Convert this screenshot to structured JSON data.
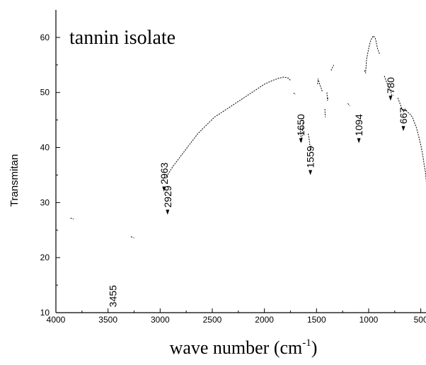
{
  "chart_data": {
    "type": "line",
    "title": "tannin isolate",
    "xlabel": "wave number (cm",
    "xlabel_sup": "-1",
    "xlabel_close": ")",
    "ylabel": "Transmitan",
    "xlim": [
      4000,
      450
    ],
    "x_reversed": true,
    "ylim": [
      10,
      65
    ],
    "x_ticks": [
      4000,
      3500,
      3000,
      2500,
      2000,
      1500,
      1000,
      500
    ],
    "y_ticks": [
      10,
      20,
      30,
      40,
      50,
      60
    ],
    "x_tick_labels": [
      "4000",
      "3500",
      "3000",
      "2500",
      "2000",
      "1500",
      "1000",
      "500"
    ],
    "y_tick_labels": [
      "10",
      "20",
      "30",
      "40",
      "50",
      "60"
    ],
    "grid": false,
    "series": [
      {
        "color": "#000000",
        "segments": [
          [
            [
              3860,
              27.2
            ],
            [
              3830,
              27.0
            ]
          ],
          [
            [
              3280,
              23.8
            ],
            [
              3250,
              23.6
            ]
          ],
          [
            [
              2970,
              34.0
            ],
            [
              2930,
              35.0
            ],
            [
              2880,
              36.5
            ],
            [
              2820,
              38.0
            ],
            [
              2760,
              39.5
            ],
            [
              2700,
              41.0
            ],
            [
              2640,
              42.5
            ],
            [
              2560,
              44.0
            ],
            [
              2480,
              45.5
            ],
            [
              2400,
              46.5
            ],
            [
              2320,
              47.5
            ],
            [
              2240,
              48.5
            ],
            [
              2160,
              49.5
            ],
            [
              2080,
              50.5
            ],
            [
              2000,
              51.5
            ],
            [
              1920,
              52.2
            ],
            [
              1860,
              52.6
            ],
            [
              1810,
              52.8
            ],
            [
              1770,
              52.6
            ],
            [
              1745,
              52.1
            ]
          ],
          [
            [
              1720,
              49.9
            ],
            [
              1700,
              49.6
            ]
          ],
          [
            [
              1655,
              43.5
            ],
            [
              1650,
              42.0
            ],
            [
              1645,
              41.0
            ],
            [
              1635,
              42.5
            ],
            [
              1630,
              44.5
            ],
            [
              1625,
              46.0
            ]
          ],
          [
            [
              1580,
              42.5
            ],
            [
              1570,
              41.5
            ],
            [
              1559,
              39.5
            ],
            [
              1550,
              40.5
            ]
          ],
          [
            [
              1490,
              51.5
            ],
            [
              1485,
              52.5
            ],
            [
              1470,
              51.5
            ],
            [
              1455,
              50.8
            ],
            [
              1445,
              50.2
            ]
          ],
          [
            [
              1420,
              47.0
            ],
            [
              1415,
              45.5
            ]
          ],
          [
            [
              1400,
              50.0
            ],
            [
              1395,
              48.5
            ],
            [
              1390,
              49.2
            ]
          ],
          [
            [
              1360,
              54.0
            ],
            [
              1335,
              55.0
            ]
          ],
          [
            [
              1200,
              48.0
            ],
            [
              1180,
              47.6
            ]
          ],
          [
            [
              1040,
              54.0
            ],
            [
              1030,
              53.5
            ],
            [
              1020,
              56.0
            ],
            [
              1000,
              58.0
            ],
            [
              980,
              59.5
            ],
            [
              955,
              60.3
            ],
            [
              935,
              59.8
            ],
            [
              915,
              58.0
            ],
            [
              895,
              57.0
            ]
          ],
          [
            [
              850,
              53.0
            ],
            [
              830,
              52.0
            ],
            [
              810,
              51.0
            ],
            [
              790,
              50.5
            ],
            [
              780,
              49.5
            ],
            [
              760,
              49.5
            ]
          ],
          [
            [
              720,
              49.0
            ],
            [
              700,
              48.0
            ],
            [
              680,
              47.0
            ],
            [
              667,
              46.5
            ],
            [
              650,
              47.0
            ],
            [
              630,
              46.5
            ],
            [
              600,
              46.0
            ],
            [
              580,
              45.5
            ],
            [
              560,
              44.5
            ],
            [
              540,
              43.5
            ],
            [
              520,
              42.0
            ],
            [
              500,
              40.5
            ],
            [
              480,
              38.5
            ],
            [
              465,
              36.5
            ],
            [
              455,
              35.5
            ],
            [
              448,
              34.0
            ],
            [
              445,
              32.5
            ],
            [
              443,
              31.0
            ]
          ]
        ]
      }
    ],
    "annotations": [
      {
        "text": "3455",
        "x": 3455,
        "y": 11.0,
        "arrow": false
      },
      {
        "text": "2963",
        "x": 2963,
        "y": 32.0,
        "arrow": true
      },
      {
        "text": "2929",
        "x": 2929,
        "y": 27.8,
        "arrow": true
      },
      {
        "text": "1650",
        "x": 1650,
        "y": 40.8,
        "arrow": true
      },
      {
        "text": "1559",
        "x": 1559,
        "y": 35.0,
        "arrow": true
      },
      {
        "text": "1094",
        "x": 1094,
        "y": 40.8,
        "arrow": true
      },
      {
        "text": "780",
        "x": 790,
        "y": 48.5,
        "arrow": true
      },
      {
        "text": "667",
        "x": 667,
        "y": 43.0,
        "arrow": true
      }
    ]
  }
}
